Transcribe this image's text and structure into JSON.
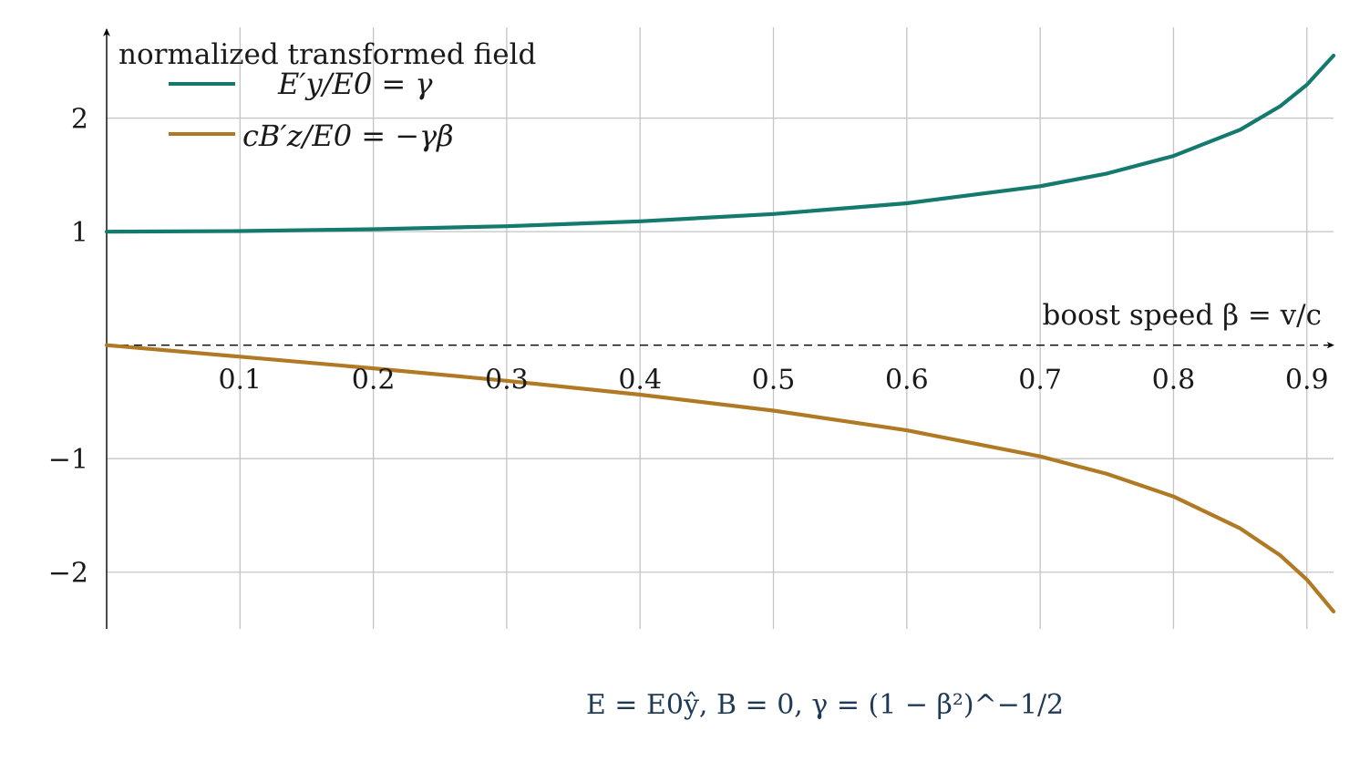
{
  "chart_data": {
    "type": "line",
    "ylabel": "normalized transformed field",
    "xlabel": "boost speed β = v/c",
    "xlim": [
      0,
      0.92
    ],
    "ylim": [
      -2.5,
      2.8
    ],
    "x_ticks": [
      0.1,
      0.2,
      0.3,
      0.4,
      0.5,
      0.6,
      0.7,
      0.8,
      0.9
    ],
    "x_tick_labels": [
      "0.1",
      "0.2",
      "0.3",
      "0.4",
      "0.5",
      "0.6",
      "0.7",
      "0.8",
      "0.9"
    ],
    "y_ticks": [
      -2,
      -1,
      1,
      2
    ],
    "y_tick_labels": [
      "−2",
      "−1",
      "1",
      "2"
    ],
    "grid": true,
    "legend_position": "top-left",
    "x": [
      0,
      0.1,
      0.2,
      0.3,
      0.4,
      0.5,
      0.6,
      0.7,
      0.75,
      0.8,
      0.85,
      0.88,
      0.9,
      0.92
    ],
    "series": [
      {
        "name": "E′y/E0 = γ",
        "color": "#147a6e",
        "values": [
          1.0,
          1.005,
          1.021,
          1.048,
          1.091,
          1.155,
          1.25,
          1.4,
          1.512,
          1.667,
          1.898,
          2.105,
          2.294,
          2.551
        ]
      },
      {
        "name": "cB′z/E0 = −γβ",
        "color": "#b07a24",
        "values": [
          0.0,
          -0.101,
          -0.204,
          -0.314,
          -0.436,
          -0.577,
          -0.75,
          -0.98,
          -1.134,
          -1.333,
          -1.614,
          -1.852,
          -2.065,
          -2.347
        ]
      }
    ],
    "caption": "E = E0ŷ,  B = 0,    γ = (1 − β²)^−1/2"
  }
}
